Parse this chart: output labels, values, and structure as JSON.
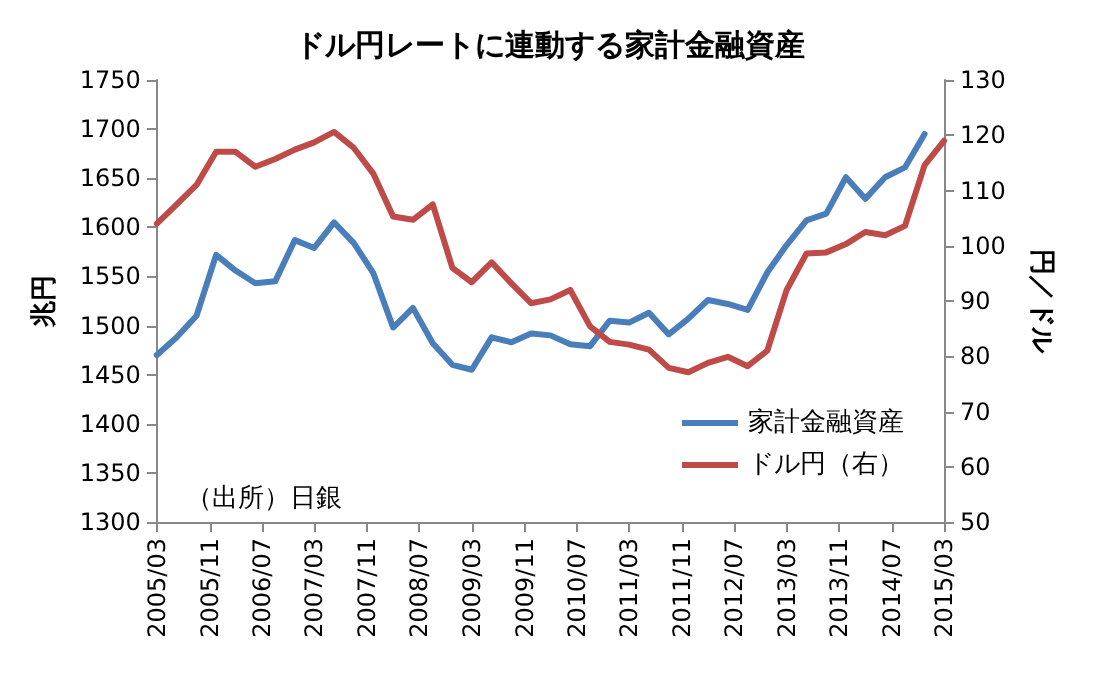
{
  "chart_data": {
    "type": "line",
    "title": "ドル円レートに連動する家計金融資産",
    "ylabel": "兆円",
    "y2label": "円／ドル",
    "x": [
      "2005-03",
      "2005-06",
      "2005-09",
      "2005-12",
      "2006-03",
      "2006-06",
      "2006-09",
      "2006-12",
      "2007-03",
      "2007-06",
      "2007-09",
      "2007-12",
      "2008-03",
      "2008-06",
      "2008-09",
      "2008-12",
      "2009-03",
      "2009-06",
      "2009-09",
      "2009-12",
      "2010-03",
      "2010-06",
      "2010-09",
      "2010-12",
      "2011-03",
      "2011-06",
      "2011-09",
      "2011-12",
      "2012-03",
      "2012-06",
      "2012-09",
      "2012-12",
      "2013-03",
      "2013-06",
      "2013-09",
      "2013-12",
      "2014-03",
      "2014-06",
      "2014-09",
      "2014-12",
      "2015-03"
    ],
    "series": [
      {
        "name": "家計金融資産",
        "color": "#4a7ebb",
        "values": [
          1470,
          1488,
          1510,
          1572,
          1556,
          1543,
          1545,
          1587,
          1579,
          1605,
          1584,
          1553,
          1498,
          1518,
          1482,
          1460,
          1455,
          1488,
          1483,
          1492,
          1490,
          1481,
          1479,
          1505,
          1503,
          1513,
          1491,
          1507,
          1526,
          1522,
          1516,
          1554,
          1582,
          1607,
          1614,
          1651,
          1629,
          1651,
          1661,
          1695,
          null
        ]
      },
      {
        "name": "ドル円（右）",
        "color": "#be4b48",
        "axis": "y2",
        "values": [
          104,
          107.5,
          111,
          117,
          117,
          114.3,
          115.7,
          117.4,
          118.7,
          120.6,
          117.7,
          113,
          105.3,
          104.7,
          107.5,
          96,
          93.4,
          97,
          93.2,
          89.6,
          90.3,
          92,
          85.4,
          82.6,
          82.1,
          81.2,
          77.9,
          77.1,
          78.8,
          79.9,
          78.2,
          81,
          92,
          98.6,
          98.8,
          100.3,
          102.5,
          101.9,
          103.6,
          114.6,
          119
        ]
      }
    ],
    "xlim": [
      "2005-03",
      "2015-03"
    ],
    "xticks": [
      {
        "value": "2005-03",
        "label": "2005/03"
      },
      {
        "value": "2005-11",
        "label": "2005/11"
      },
      {
        "value": "2006-07",
        "label": "2006/07"
      },
      {
        "value": "2007-03",
        "label": "2007/03"
      },
      {
        "value": "2007-11",
        "label": "2007/11"
      },
      {
        "value": "2008-07",
        "label": "2008/07"
      },
      {
        "value": "2009-03",
        "label": "2009/03"
      },
      {
        "value": "2009-11",
        "label": "2009/11"
      },
      {
        "value": "2010-07",
        "label": "2010/07"
      },
      {
        "value": "2011-03",
        "label": "2011/03"
      },
      {
        "value": "2011-11",
        "label": "2011/11"
      },
      {
        "value": "2012-07",
        "label": "2012/07"
      },
      {
        "value": "2013-03",
        "label": "2013/03"
      },
      {
        "value": "2013-11",
        "label": "2013/11"
      },
      {
        "value": "2014-07",
        "label": "2014/07"
      },
      {
        "value": "2015-03",
        "label": "2015/03"
      }
    ],
    "ylim": [
      1300,
      1750
    ],
    "yticks": [
      1300,
      1350,
      1400,
      1450,
      1500,
      1550,
      1600,
      1650,
      1700,
      1750
    ],
    "y2lim": [
      50,
      130
    ],
    "y2ticks": [
      50,
      60,
      70,
      80,
      90,
      100,
      110,
      120,
      130
    ],
    "grid": false,
    "legend": "right",
    "marker": "none",
    "line_style": "solid",
    "annotations": [
      "（出所）日銀"
    ]
  }
}
